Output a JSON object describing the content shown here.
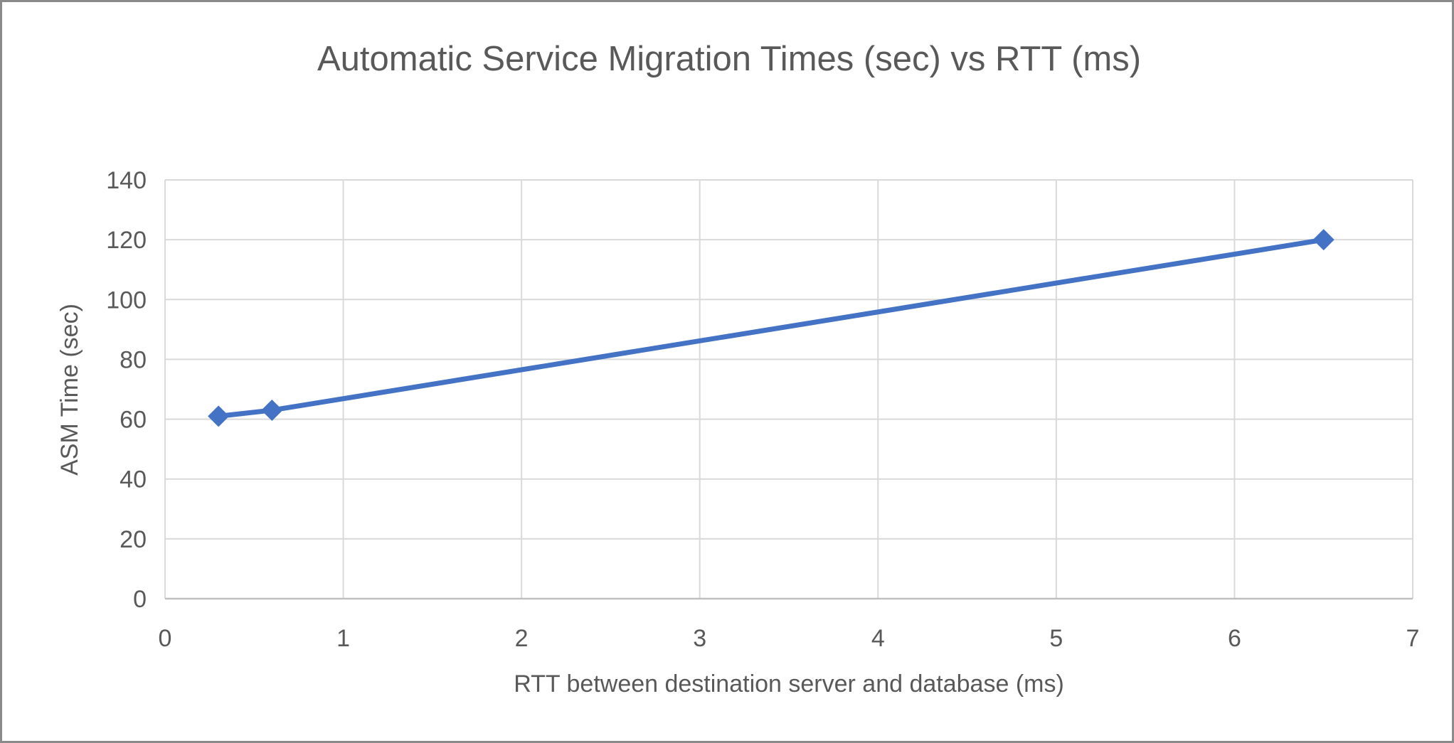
{
  "chart_data": {
    "type": "line",
    "title": "Automatic Service Migration Times (sec) vs RTT (ms)",
    "xlabel": "RTT between destination server and database (ms)",
    "ylabel": "ASM Time (sec)",
    "series": [
      {
        "name": "ASM Time (sec)",
        "points": [
          [
            0.3,
            61
          ],
          [
            0.6,
            63
          ],
          [
            6.5,
            120
          ]
        ],
        "marker": "diamond"
      }
    ],
    "xlim": [
      0,
      7
    ],
    "ylim": [
      0,
      140
    ],
    "x_ticks": [
      0,
      1,
      2,
      3,
      4,
      5,
      6,
      7
    ],
    "y_ticks": [
      0,
      20,
      40,
      60,
      80,
      100,
      120,
      140
    ],
    "grid": true,
    "legend": "none"
  },
  "colors": {
    "series": "#4472C4",
    "gridline": "#D9D9D9",
    "axis_line": "#BFBFBF",
    "text": "#595959",
    "frame_border": "#8A8A8A",
    "background": "#FFFFFF"
  }
}
